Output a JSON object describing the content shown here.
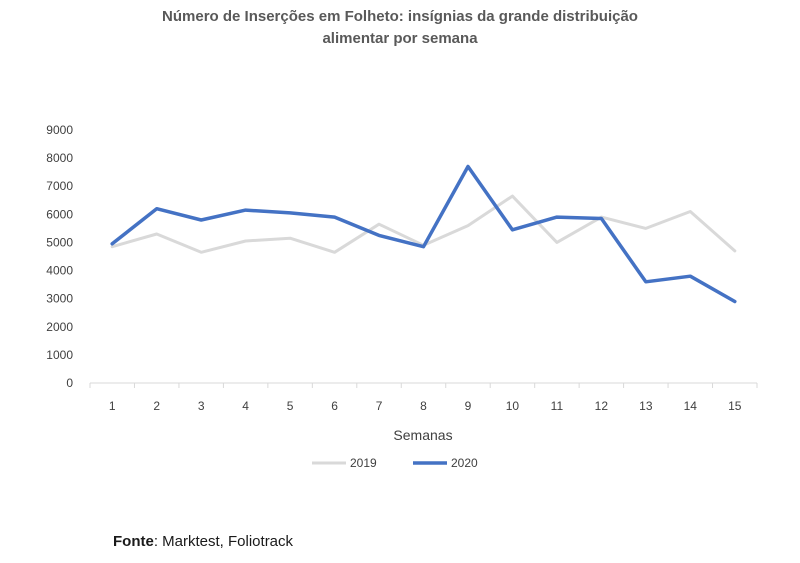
{
  "chart_data": {
    "type": "line",
    "title_line1": "Número de Inserções em Folheto: insígnias da grande distribuição",
    "title_line2": "alimentar por semana",
    "xlabel": "Semanas",
    "ylabel": "",
    "ylim": [
      0,
      9000
    ],
    "y_ticks": [
      0,
      1000,
      2000,
      3000,
      4000,
      5000,
      6000,
      7000,
      8000,
      9000
    ],
    "categories": [
      "1",
      "2",
      "3",
      "4",
      "5",
      "6",
      "7",
      "8",
      "9",
      "10",
      "11",
      "12",
      "13",
      "14",
      "15"
    ],
    "grid": false,
    "legend_position": "bottom",
    "series": [
      {
        "name": "2019",
        "color": "#d9d9d9",
        "values": [
          4850,
          5300,
          4650,
          5050,
          5150,
          4650,
          5650,
          4900,
          5600,
          6650,
          5000,
          5900,
          5500,
          6100,
          4700
        ]
      },
      {
        "name": "2020",
        "color": "#4472c4",
        "values": [
          4950,
          6200,
          5800,
          6150,
          6050,
          5900,
          5250,
          4850,
          7700,
          5450,
          5900,
          5850,
          3600,
          3800,
          2900
        ]
      }
    ]
  },
  "source": {
    "label": "Fonte",
    "text": ": Marktest, Foliotrack"
  }
}
